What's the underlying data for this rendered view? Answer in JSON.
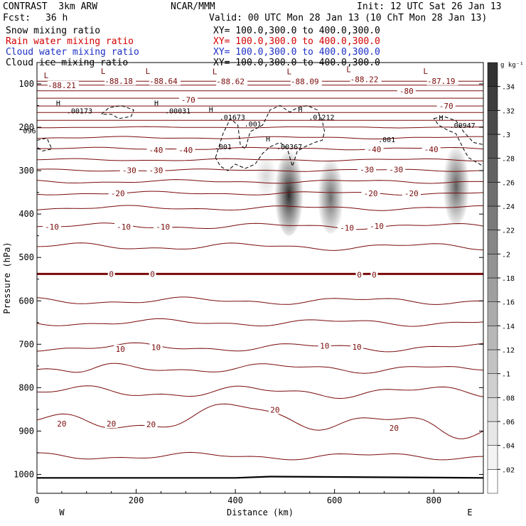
{
  "header": {
    "model": "CONTRAST  3km ARW",
    "org": "NCAR/MMM",
    "init": "Init: 12 UTC Sat 26 Jan 13",
    "fcst_label": "Fcst:",
    "fcst_value": "36 h",
    "valid": "Valid: 00 UTC Mon 28 Jan 13 (10 ChT Mon 28 Jan 13)",
    "fields": [
      {
        "name": "Snow mixing ratio",
        "xy": "XY= 100.0,300.0 to 400.0,300.0",
        "color": "#000000"
      },
      {
        "name": "Rain water mixing ratio",
        "xy": "XY= 100.0,300.0 to 400.0,300.0",
        "color": "#d40000"
      },
      {
        "name": "Cloud water mixing ratio",
        "xy": "XY= 100.0,300.0 to 400.0,300.0",
        "color": "#1c2fc4"
      },
      {
        "name": "Cloud ice mixing ratio",
        "xy": "XY= 100.0,300.0 to 400.0,300.0",
        "color": "#000000"
      }
    ]
  },
  "colors": {
    "temp": "#7a0a0a",
    "shade": "#000000",
    "ice": "#000000"
  },
  "chart_data": {
    "type": "cross-section",
    "xlabel": "Distance (km)",
    "ylabel": "Pressure (hPa)",
    "xlim": [
      0,
      900
    ],
    "ylim_hpa": [
      50,
      1045
    ],
    "x_ticks": [
      0,
      200,
      400,
      600,
      800
    ],
    "y_ticks": [
      100,
      200,
      300,
      400,
      500,
      600,
      700,
      800,
      900,
      1000
    ],
    "west_label": "W",
    "east_label": "E",
    "colorbar": {
      "unit": "g kg⁻¹",
      "ticks": [
        ".02",
        ".04",
        ".06",
        ".08",
        ".1",
        ".12",
        ".14",
        ".16",
        ".18",
        ".2",
        ".22",
        ".24",
        ".26",
        ".28",
        ".3",
        ".32",
        ".34"
      ]
    },
    "temperature_levels": [
      -80,
      -70,
      -60,
      -50,
      -40,
      -30,
      -20,
      -10,
      0,
      10,
      20
    ],
    "temperature_labels": [
      {
        "text": "-80",
        "x": 745,
        "p": 116
      },
      {
        "text": "-70",
        "x": 305,
        "p": 137
      },
      {
        "text": "-70",
        "x": 825,
        "p": 151
      },
      {
        "text": "-40",
        "x": 240,
        "p": 252
      },
      {
        "text": "-40",
        "x": 300,
        "p": 252
      },
      {
        "text": "-40",
        "x": 680,
        "p": 251
      },
      {
        "text": "-40",
        "x": 795,
        "p": 251
      },
      {
        "text": "-30",
        "x": 186,
        "p": 299
      },
      {
        "text": "-30",
        "x": 240,
        "p": 299
      },
      {
        "text": "-30",
        "x": 665,
        "p": 297
      },
      {
        "text": "-30",
        "x": 724,
        "p": 297
      },
      {
        "text": "-20",
        "x": 163,
        "p": 352
      },
      {
        "text": "-20",
        "x": 673,
        "p": 352
      },
      {
        "text": "-20",
        "x": 755,
        "p": 352
      },
      {
        "text": "-10",
        "x": 30,
        "p": 429
      },
      {
        "text": "-10",
        "x": 175,
        "p": 429
      },
      {
        "text": "-10",
        "x": 254,
        "p": 429
      },
      {
        "text": "-10",
        "x": 625,
        "p": 432
      },
      {
        "text": "-10",
        "x": 685,
        "p": 428
      },
      {
        "text": "0",
        "x": 150,
        "p": 538
      },
      {
        "text": "0",
        "x": 233,
        "p": 538
      },
      {
        "text": "0",
        "x": 650,
        "p": 540
      },
      {
        "text": "0",
        "x": 680,
        "p": 540
      },
      {
        "text": "10",
        "x": 168,
        "p": 711
      },
      {
        "text": "10",
        "x": 240,
        "p": 707
      },
      {
        "text": "10",
        "x": 580,
        "p": 704
      },
      {
        "text": "10",
        "x": 645,
        "p": 706
      },
      {
        "text": "20",
        "x": 50,
        "p": 883
      },
      {
        "text": "20",
        "x": 150,
        "p": 883
      },
      {
        "text": "20",
        "x": 230,
        "p": 885
      },
      {
        "text": "20",
        "x": 480,
        "p": 851
      },
      {
        "text": "20",
        "x": 720,
        "p": 893
      }
    ],
    "extrema": [
      {
        "type": "L",
        "x": 50,
        "p": 90,
        "value": "-88.21"
      },
      {
        "type": "L",
        "x": 165,
        "p": 80,
        "value": "-88.18"
      },
      {
        "type": "L",
        "x": 255,
        "p": 80,
        "value": "-88.64"
      },
      {
        "type": "L",
        "x": 390,
        "p": 81,
        "value": "-88.62"
      },
      {
        "type": "L",
        "x": 540,
        "p": 81,
        "value": "-88.09"
      },
      {
        "type": "L",
        "x": 660,
        "p": 76,
        "value": "-88.22"
      },
      {
        "type": "L",
        "x": 815,
        "p": 80,
        "value": "-87.19"
      }
    ],
    "ice_labels": [
      {
        "kind": "H",
        "x": 60,
        "p": 163,
        "value": ".00173"
      },
      {
        "kind": "H",
        "x": 258,
        "p": 163,
        "value": ".00031"
      },
      {
        "kind": "H",
        "x": 368,
        "p": 178,
        "value": ".01673"
      },
      {
        "kind": "H",
        "x": 548,
        "p": 178,
        "value": ".01212"
      },
      {
        "kind": "H",
        "x": 832,
        "p": 197,
        "value": ".00947"
      },
      {
        "kind": "H",
        "x": 483,
        "p": 246,
        "value": ".00367"
      },
      {
        "kind": "",
        "x": 418,
        "p": 193,
        "value": ".001"
      },
      {
        "kind": "",
        "x": 358,
        "p": 246,
        "value": ".001"
      },
      {
        "kind": "",
        "x": 688,
        "p": 229,
        "value": ".001"
      },
      {
        "kind": "",
        "x": -28,
        "p": 209,
        "value": "096"
      }
    ],
    "snow_plumes": [
      {
        "x": 508,
        "p_top": 240,
        "p_bottom": 450,
        "max": 0.32
      },
      {
        "x": 592,
        "p_top": 260,
        "p_bottom": 445,
        "max": 0.22
      },
      {
        "x": 845,
        "p_top": 230,
        "p_bottom": 425,
        "max": 0.24
      },
      {
        "x": 462,
        "p_top": 255,
        "p_bottom": 360,
        "max": 0.06
      }
    ]
  }
}
